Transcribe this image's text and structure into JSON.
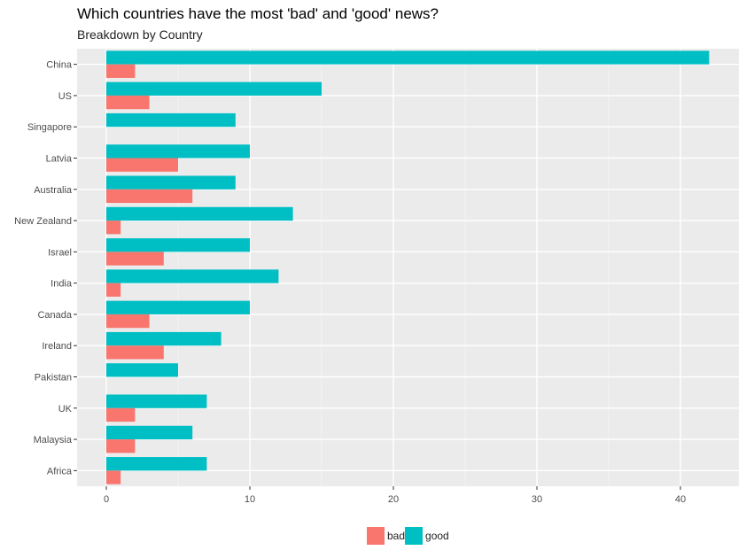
{
  "chart_data": {
    "type": "bar",
    "orientation": "horizontal",
    "title": "Which countries have the most 'bad' and 'good' news?",
    "subtitle": "Breakdown by Country",
    "xlabel": "",
    "ylabel": "",
    "categories": [
      "China",
      "US",
      "Singapore",
      "Latvia",
      "Australia",
      "New Zealand",
      "Israel",
      "India",
      "Canada",
      "Ireland",
      "Pakistan",
      "UK",
      "Malaysia",
      "Africa"
    ],
    "series": [
      {
        "name": "good",
        "color": "#00BFC4",
        "values": [
          42,
          15,
          9,
          10,
          9,
          13,
          10,
          12,
          10,
          8,
          5,
          7,
          6,
          7
        ]
      },
      {
        "name": "bad",
        "color": "#F8766D",
        "values": [
          2,
          3,
          0,
          5,
          6,
          1,
          4,
          1,
          3,
          4,
          0,
          2,
          2,
          1
        ]
      }
    ],
    "xlim": [
      -2,
      44
    ],
    "xticks": [
      0,
      10,
      20,
      30,
      40
    ],
    "grid": true,
    "legend": {
      "position": "bottom",
      "entries": [
        "bad",
        "good"
      ]
    }
  }
}
